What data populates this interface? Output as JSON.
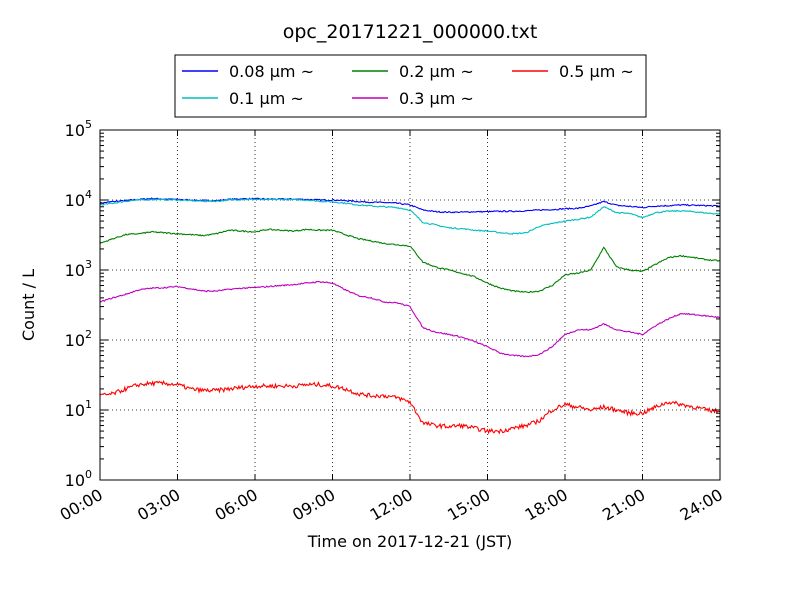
{
  "chart_data": {
    "type": "line",
    "title": "opc_20171221_000000.txt",
    "xlabel": "Time on 2017-12-21 (JST)",
    "ylabel": "Count / L",
    "xlim": [
      "00:00",
      "24:00"
    ],
    "ylim": [
      1,
      100000
    ],
    "yscale": "log",
    "grid": true,
    "legend_position": "top-center",
    "x_ticks": [
      "00:00",
      "03:00",
      "06:00",
      "09:00",
      "12:00",
      "15:00",
      "18:00",
      "21:00",
      "24:00"
    ],
    "y_ticks": [
      {
        "base": "10",
        "exp": "0"
      },
      {
        "base": "10",
        "exp": "1"
      },
      {
        "base": "10",
        "exp": "2"
      },
      {
        "base": "10",
        "exp": "3"
      },
      {
        "base": "10",
        "exp": "4"
      },
      {
        "base": "10",
        "exp": "5"
      }
    ],
    "x_hours": [
      0,
      0.5,
      1,
      1.5,
      2,
      2.5,
      3,
      3.5,
      4,
      4.5,
      5,
      5.5,
      6,
      6.5,
      7,
      7.5,
      8,
      8.5,
      9,
      9.5,
      10,
      10.5,
      11,
      11.5,
      12,
      12.5,
      13,
      13.5,
      14,
      14.5,
      15,
      15.5,
      16,
      16.5,
      17,
      17.5,
      18,
      18.5,
      19,
      19.5,
      20,
      20.5,
      21,
      21.5,
      22,
      22.5,
      23,
      23.5,
      24
    ],
    "series": [
      {
        "name": "0.08 μm ~",
        "color": "#0000ff",
        "values": [
          9000,
          9500,
          9800,
          10200,
          10500,
          10300,
          10200,
          10000,
          9800,
          9800,
          10200,
          10400,
          10400,
          10300,
          10300,
          10300,
          10200,
          10000,
          10000,
          9800,
          9500,
          9300,
          9200,
          9000,
          8500,
          7200,
          6800,
          6700,
          6700,
          6800,
          6800,
          6900,
          6900,
          7000,
          7200,
          7300,
          7500,
          7600,
          8200,
          9500,
          8400,
          8100,
          7800,
          8200,
          8300,
          8500,
          8400,
          8300,
          8200
        ]
      },
      {
        "name": "0.1 μm ~",
        "color": "#00bfbf",
        "values": [
          8500,
          9000,
          9600,
          10000,
          10200,
          10100,
          10000,
          9800,
          9600,
          9600,
          10000,
          10200,
          10200,
          10100,
          10200,
          10100,
          10000,
          9600,
          9400,
          9000,
          8500,
          8200,
          8000,
          7800,
          7200,
          4800,
          4400,
          4000,
          3900,
          3700,
          3600,
          3400,
          3300,
          3400,
          4200,
          4600,
          5000,
          5300,
          5700,
          8000,
          6600,
          6400,
          5600,
          6600,
          6900,
          7000,
          6800,
          6500,
          6300
        ]
      },
      {
        "name": "0.2 μm ~",
        "color": "#008000",
        "values": [
          2400,
          2800,
          3200,
          3300,
          3500,
          3400,
          3300,
          3200,
          3100,
          3300,
          3700,
          3600,
          3500,
          3800,
          3700,
          3600,
          3800,
          3700,
          3700,
          3200,
          2800,
          2600,
          2400,
          2300,
          2200,
          1300,
          1100,
          1000,
          900,
          800,
          650,
          550,
          500,
          480,
          500,
          600,
          850,
          900,
          1000,
          2100,
          1100,
          1000,
          950,
          1200,
          1500,
          1600,
          1500,
          1400,
          1350
        ]
      },
      {
        "name": "0.3 μm ~",
        "color": "#bf00bf",
        "values": [
          350,
          400,
          450,
          520,
          550,
          560,
          580,
          540,
          500,
          500,
          530,
          550,
          560,
          580,
          600,
          620,
          650,
          680,
          650,
          520,
          430,
          400,
          350,
          340,
          300,
          150,
          130,
          120,
          110,
          95,
          80,
          65,
          60,
          58,
          62,
          80,
          120,
          140,
          140,
          170,
          140,
          130,
          120,
          160,
          200,
          240,
          230,
          220,
          210
        ]
      },
      {
        "name": "0.5 μm ~",
        "color": "#ff0000",
        "values": [
          16,
          17,
          20,
          23,
          24,
          24,
          23,
          20,
          19,
          19,
          20,
          21,
          22,
          22,
          22,
          22,
          23,
          23,
          22,
          20,
          17,
          16,
          16,
          15,
          13,
          6.5,
          6,
          5.8,
          6,
          5.5,
          5,
          5,
          5.5,
          6,
          7,
          10,
          12,
          11,
          10,
          11,
          10,
          9,
          9,
          11,
          13,
          12,
          11,
          10,
          9.5
        ]
      }
    ]
  }
}
